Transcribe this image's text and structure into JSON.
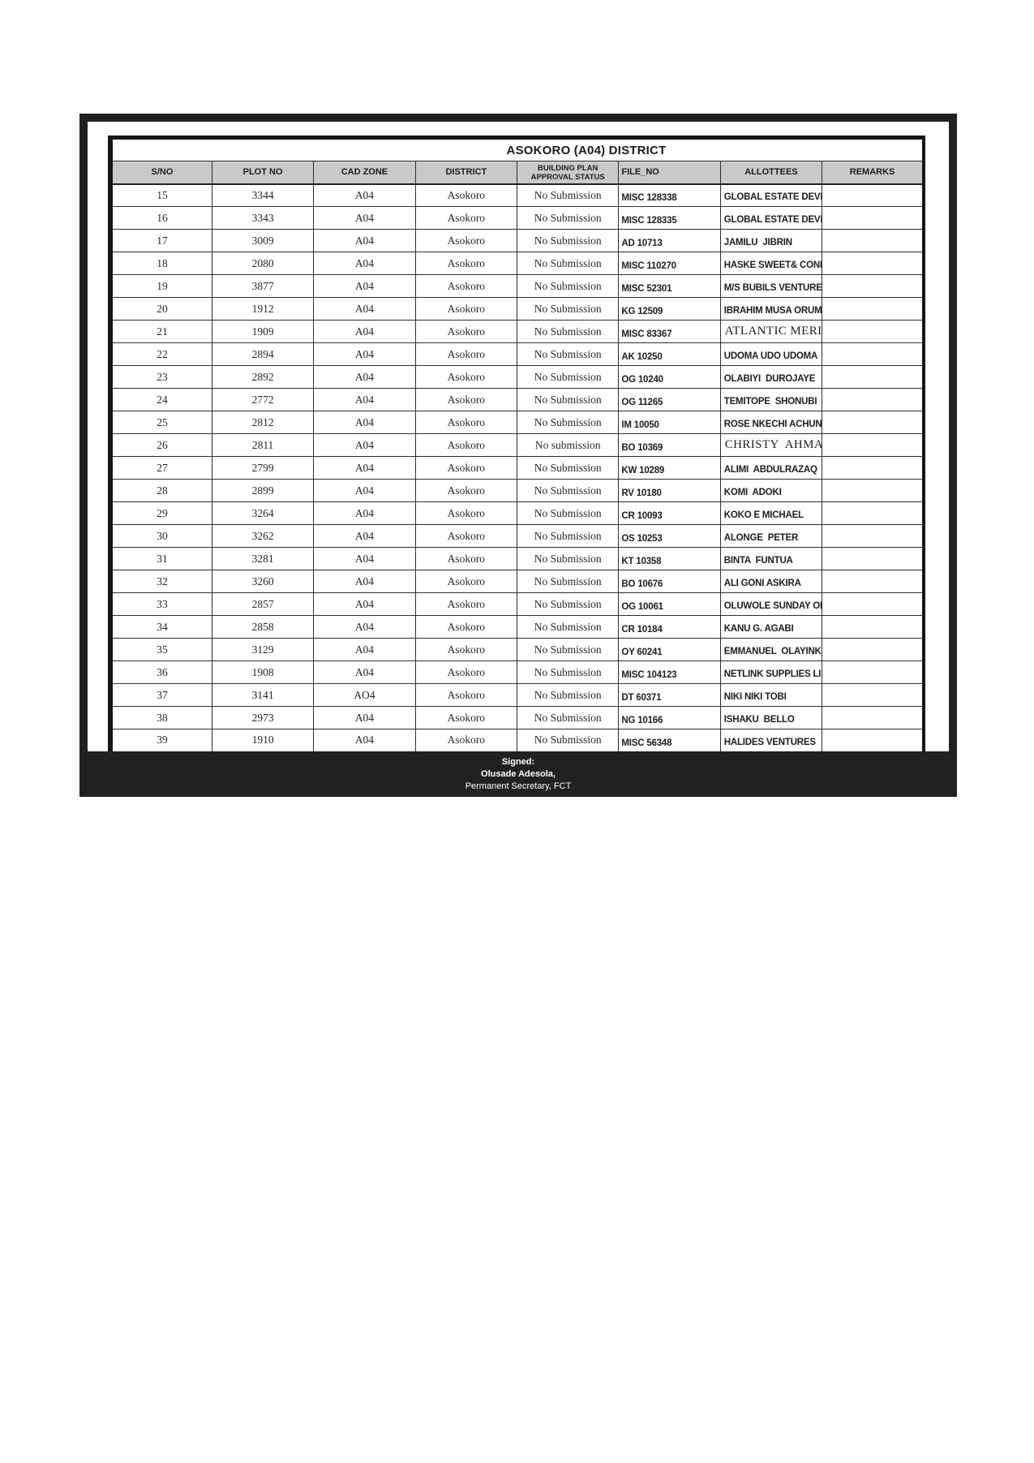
{
  "title": "ASOKORO (A04) DISTRICT",
  "table": {
    "columns": [
      {
        "key": "sno",
        "label": "S/NO"
      },
      {
        "key": "plot",
        "label": "PLOT NO"
      },
      {
        "key": "cad",
        "label": "CAD ZONE"
      },
      {
        "key": "district",
        "label": "DISTRICT"
      },
      {
        "key": "status",
        "label": "BUILDING PLAN APPROVAL STATUS"
      },
      {
        "key": "file",
        "label": "FILE_NO"
      },
      {
        "key": "allottees",
        "label": "ALLOTTEES"
      },
      {
        "key": "remarks",
        "label": "REMARKS"
      }
    ],
    "rows": [
      {
        "sno": "15",
        "plot": "3344",
        "cad": "A04",
        "district": "Asokoro",
        "status": "No Submission",
        "file": "MISC 128338",
        "allottees": "GLOBAL ESTATE DEVELOPMENT MANAGEMENT LIMITED",
        "remarks": "",
        "serif": false
      },
      {
        "sno": "16",
        "plot": "3343",
        "cad": "A04",
        "district": "Asokoro",
        "status": "No Submission",
        "file": "MISC 128335",
        "allottees": "GLOBAL ESTATE DEVELOPMENT MANAGEMENT LIMITED",
        "remarks": "",
        "serif": false
      },
      {
        "sno": "17",
        "plot": "3009",
        "cad": "A04",
        "district": "Asokoro",
        "status": "No Submission",
        "file": "AD 10713",
        "allottees": "JAMILU  JIBRIN",
        "remarks": "",
        "serif": false
      },
      {
        "sno": "18",
        "plot": "2080",
        "cad": "A04",
        "district": "Asokoro",
        "status": "No Submission",
        "file": "MISC 110270",
        "allottees": "HASKE SWEET& CONFECTIONERY NIGERIA LIMITED",
        "remarks": "",
        "serif": false
      },
      {
        "sno": "19",
        "plot": "3877",
        "cad": "A04",
        "district": "Asokoro",
        "status": "No Submission",
        "file": "MISC 52301",
        "allottees": "M/S BUBILS VENTURES LTD",
        "remarks": "",
        "serif": false
      },
      {
        "sno": "20",
        "plot": "1912",
        "cad": "A04",
        "district": "Asokoro",
        "status": "No Submission",
        "file": "KG 12509",
        "allottees": "IBRAHIM MUSA ORUMA",
        "remarks": "",
        "serif": false
      },
      {
        "sno": "21",
        "plot": "1909",
        "cad": "A04",
        "district": "Asokoro",
        "status": "No Submission",
        "file": "MISC 83367",
        "allottees": "ATLANTIC MERIDEAN COMPANY LIMITED",
        "remarks": "",
        "serif": true
      },
      {
        "sno": "22",
        "plot": "2894",
        "cad": "A04",
        "district": "Asokoro",
        "status": "No Submission",
        "file": "AK 10250",
        "allottees": "UDOMA UDO UDOMA",
        "remarks": "",
        "serif": false
      },
      {
        "sno": "23",
        "plot": "2892",
        "cad": "A04",
        "district": "Asokoro",
        "status": "No Submission",
        "file": "OG 10240",
        "allottees": "OLABIYI  DUROJAYE",
        "remarks": "",
        "serif": false
      },
      {
        "sno": "24",
        "plot": "2772",
        "cad": "A04",
        "district": "Asokoro",
        "status": "No Submission",
        "file": "OG 11265",
        "allottees": "TEMITOPE  SHONUBI",
        "remarks": "",
        "serif": false
      },
      {
        "sno": "25",
        "plot": "2812",
        "cad": "A04",
        "district": "Asokoro",
        "status": "No Submission",
        "file": "IM 10050",
        "allottees": "ROSE NKECHI ACHUNINE",
        "remarks": "",
        "serif": false
      },
      {
        "sno": "26",
        "plot": "2811",
        "cad": "A04",
        "district": "Asokoro",
        "status": "No submission",
        "file": "BO 10369",
        "allottees": "CHRISTY  AHMADU",
        "remarks": "",
        "serif": true
      },
      {
        "sno": "27",
        "plot": "2799",
        "cad": "A04",
        "district": "Asokoro",
        "status": "No Submission",
        "file": "KW 10289",
        "allottees": "ALIMI  ABDULRAZAQ",
        "remarks": "",
        "serif": false
      },
      {
        "sno": "28",
        "plot": "2899",
        "cad": "A04",
        "district": "Asokoro",
        "status": "No Submission",
        "file": "RV 10180",
        "allottees": "KOMI  ADOKI",
        "remarks": "",
        "serif": false
      },
      {
        "sno": "29",
        "plot": "3264",
        "cad": "A04",
        "district": "Asokoro",
        "status": "No Submission",
        "file": "CR 10093",
        "allottees": "KOKO E MICHAEL",
        "remarks": "",
        "serif": false
      },
      {
        "sno": "30",
        "plot": "3262",
        "cad": "A04",
        "district": "Asokoro",
        "status": "No Submission",
        "file": "OS 10253",
        "allottees": "ALONGE  PETER",
        "remarks": "",
        "serif": false
      },
      {
        "sno": "31",
        "plot": "3281",
        "cad": "A04",
        "district": "Asokoro",
        "status": "No Submission",
        "file": "KT 10358",
        "allottees": "BINTA  FUNTUA",
        "remarks": "",
        "serif": false
      },
      {
        "sno": "32",
        "plot": "3260",
        "cad": "A04",
        "district": "Asokoro",
        "status": "No Submission",
        "file": "BO 10676",
        "allottees": "ALI GONI ASKIRA",
        "remarks": "",
        "serif": false
      },
      {
        "sno": "33",
        "plot": "2857",
        "cad": "A04",
        "district": "Asokoro",
        "status": "No Submission",
        "file": "OG 10061",
        "allottees": "OLUWOLE SUNDAY ODUYEMI",
        "remarks": "",
        "serif": false
      },
      {
        "sno": "34",
        "plot": "2858",
        "cad": "A04",
        "district": "Asokoro",
        "status": "No Submission",
        "file": "CR 10184",
        "allottees": "KANU G. AGABI",
        "remarks": "",
        "serif": false
      },
      {
        "sno": "35",
        "plot": "3129",
        "cad": "A04",
        "district": "Asokoro",
        "status": "No Submission",
        "file": "OY 60241",
        "allottees": "EMMANUEL  OLAYINKA",
        "remarks": "",
        "serif": false
      },
      {
        "sno": "36",
        "plot": "1908",
        "cad": "A04",
        "district": "Asokoro",
        "status": "No Submission",
        "file": "MISC 104123",
        "allottees": "NETLINK SUPPLIES LIMITED",
        "remarks": "",
        "serif": false
      },
      {
        "sno": "37",
        "plot": "3141",
        "cad": "AO4",
        "district": "Asokoro",
        "status": "No Submission",
        "file": "DT 60371",
        "allottees": "NIKI NIKI TOBI",
        "remarks": "",
        "serif": false
      },
      {
        "sno": "38",
        "plot": "2973",
        "cad": "A04",
        "district": "Asokoro",
        "status": "No Submission",
        "file": "NG 10166",
        "allottees": "ISHAKU  BELLO",
        "remarks": "",
        "serif": false
      },
      {
        "sno": "39",
        "plot": "1910",
        "cad": "A04",
        "district": "Asokoro",
        "status": "No Submission",
        "file": "MISC 56348",
        "allottees": "HALIDES VENTURES",
        "remarks": "",
        "serif": false
      }
    ]
  },
  "footer": {
    "line1": "Signed:",
    "line2": "Olusade Adesola,",
    "line3": "Permanent Secretary, FCT"
  },
  "colors": {
    "frame": "#212121",
    "header_fill": "#c9c9c9",
    "grid": "#2e2e2e",
    "footer_text": "#ffffff"
  }
}
